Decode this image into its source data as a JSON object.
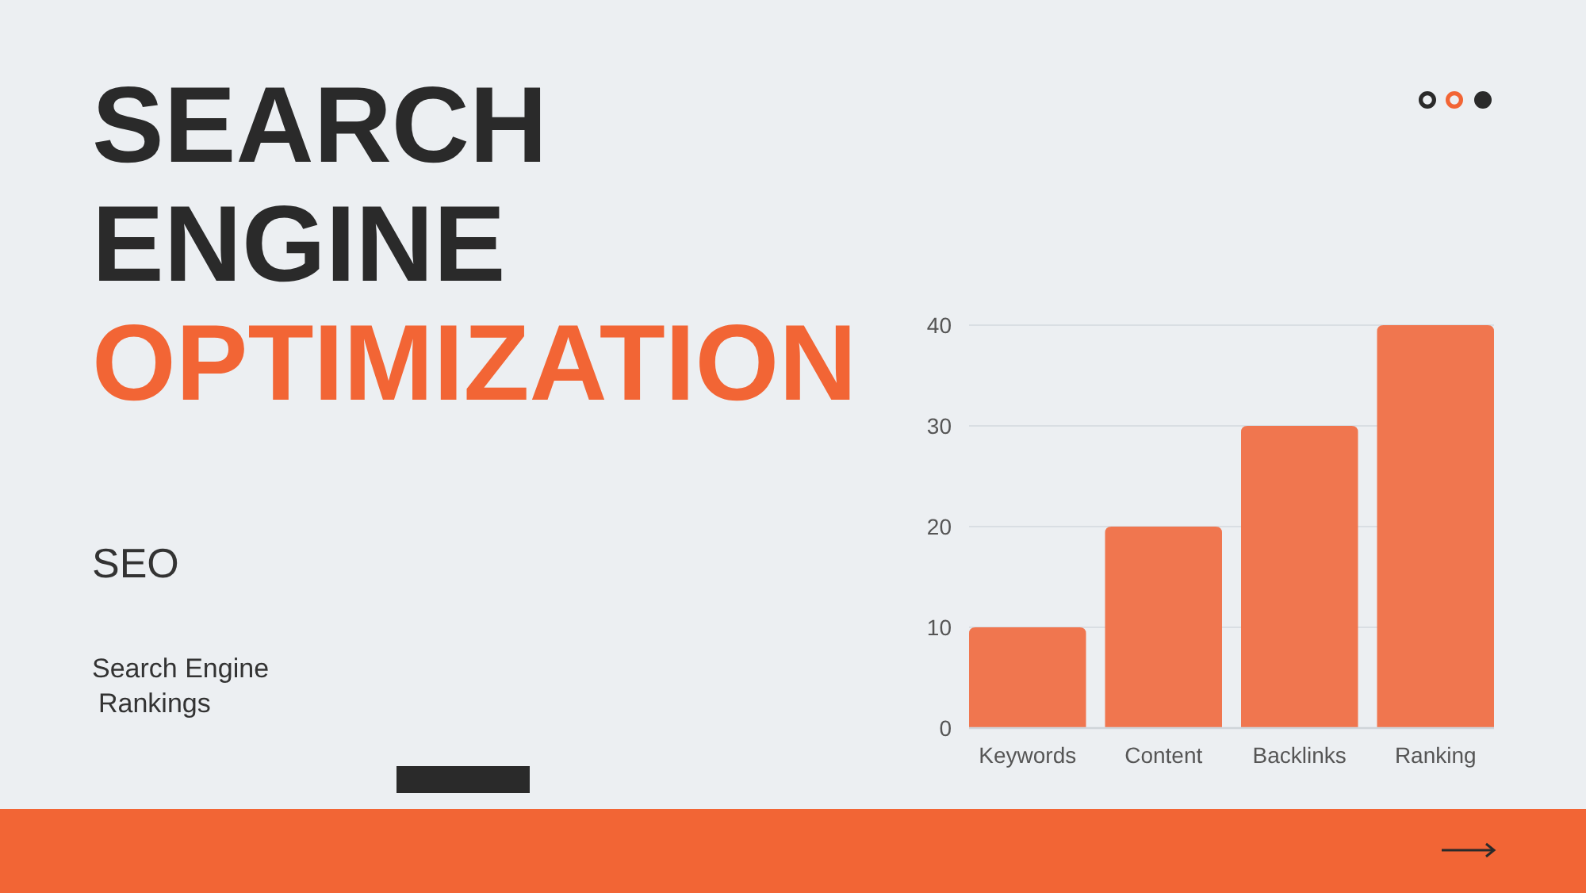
{
  "chart_data": {
    "type": "bar",
    "title": "SEARCH ENGINE OPTIMIZATION",
    "subtitle": "SEO",
    "annotations": [
      "Search Engine Rankings"
    ],
    "categories": [
      "Keywords",
      "Content",
      "Backlinks",
      "Ranking"
    ],
    "values": [
      10,
      20,
      30,
      40
    ],
    "color": "#f0764f",
    "ylim": [
      0,
      40
    ],
    "yticks": [
      0,
      10,
      20,
      30,
      40
    ],
    "grid": "y"
  }
}
